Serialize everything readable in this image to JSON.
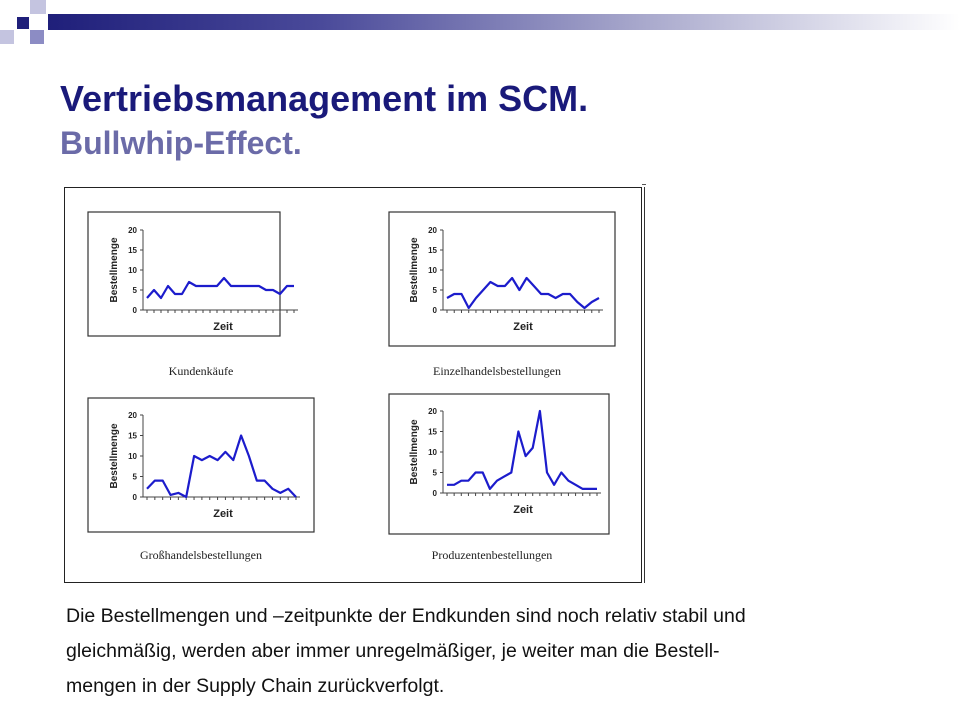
{
  "slide": {
    "title": "Vertriebsmanagement im SCM.",
    "subtitle": "Bullwhip-Effect.",
    "caption_lines": [
      "Die Bestellmengen und –zeitpunkte der Endkunden sind noch relativ stabil und",
      "gleichmäßig, werden aber immer unregelmäßiger, je weiter man die Bestell-",
      "mengen in der Supply Chain zurückverfolgt."
    ]
  },
  "colors": {
    "title": "#1a1a7a",
    "subtitle": "#6b6ba8",
    "series_line": "#1c1ccc",
    "accent_squares": [
      "#1f1f7a",
      "#8c8cc4",
      "#c4c4e0"
    ]
  },
  "chart_data": [
    {
      "type": "line",
      "title": "Kundenkäufe",
      "xlabel": "Zeit",
      "ylabel": "Bestellmenge",
      "yticks": [
        "0",
        "5",
        "10",
        "15",
        "20"
      ],
      "ylim": [
        0,
        20
      ],
      "values": [
        3,
        5,
        3,
        6,
        4,
        4,
        7,
        6,
        6,
        6,
        6,
        8,
        6,
        6,
        6,
        6,
        6,
        5,
        5,
        4,
        6,
        6
      ]
    },
    {
      "type": "line",
      "title": "Einzelhandelsbestellungen",
      "xlabel": "Zeit",
      "ylabel": "Bestellmenge",
      "yticks": [
        "0",
        "5",
        "10",
        "15",
        "20"
      ],
      "ylim": [
        0,
        20
      ],
      "values": [
        3,
        4,
        4,
        0.5,
        3,
        5,
        7,
        6,
        6,
        8,
        5,
        8,
        6,
        4,
        4,
        3,
        4,
        4,
        2,
        0.5,
        2,
        3
      ]
    },
    {
      "type": "line",
      "title": "Großhandelsbestellungen",
      "xlabel": "Zeit",
      "ylabel": "Bestellmenge",
      "yticks": [
        "0",
        "5",
        "10",
        "15",
        "20"
      ],
      "ylim": [
        0,
        20
      ],
      "values": [
        2,
        4,
        4,
        0.5,
        1,
        0,
        10,
        9,
        10,
        9,
        11,
        9,
        15,
        10,
        4,
        4,
        2,
        1,
        2,
        0
      ]
    },
    {
      "type": "line",
      "title": "Produzentenbestellungen",
      "xlabel": "Zeit",
      "ylabel": "Bestellmenge",
      "yticks": [
        "0",
        "5",
        "10",
        "15",
        "20"
      ],
      "ylim": [
        0,
        20
      ],
      "values": [
        2,
        2,
        3,
        3,
        5,
        5,
        1,
        3,
        4,
        5,
        15,
        9,
        11,
        20,
        5,
        2,
        5,
        3,
        2,
        1,
        1,
        1
      ]
    }
  ]
}
